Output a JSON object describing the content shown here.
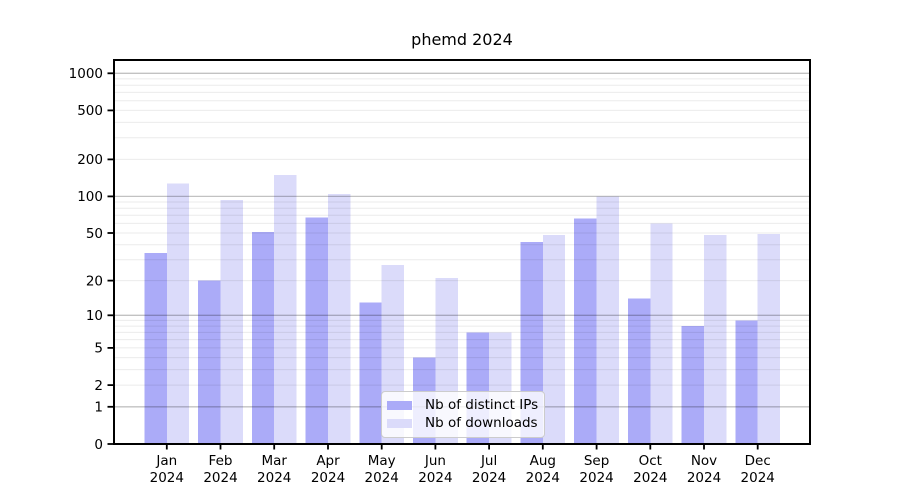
{
  "title": "phemd 2024",
  "chart_data": {
    "type": "bar",
    "title": "phemd 2024",
    "categories": [
      "Jan",
      "Feb",
      "Mar",
      "Apr",
      "May",
      "Jun",
      "Jul",
      "Aug",
      "Sep",
      "Oct",
      "Nov",
      "Dec"
    ],
    "year_label": "2024",
    "series": [
      {
        "name": "Nb of distinct IPs",
        "color": "#ababf8",
        "values": [
          34,
          20,
          51,
          67,
          13,
          4,
          7,
          42,
          66,
          14,
          8,
          9
        ]
      },
      {
        "name": "Nb of downloads",
        "color": "#dbdbfa",
        "values": [
          127,
          93,
          150,
          105,
          27,
          21,
          7,
          48,
          100,
          60,
          48,
          49
        ]
      }
    ],
    "yscale": "log10(1+v)",
    "yticks": [
      0,
      1,
      2,
      5,
      10,
      20,
      50,
      100,
      200,
      500,
      1000
    ],
    "major_gridlines": [
      1,
      10,
      100,
      1000
    ],
    "minor_gridline_steps": [
      2,
      3,
      4,
      5,
      6,
      7,
      8,
      9
    ],
    "ylim_top_value": 1300,
    "grid": true,
    "legend_position": "lower center",
    "legend_entries": [
      "Nb of distinct IPs",
      "Nb of downloads"
    ]
  },
  "colors": {
    "bar_distinct_ips": "#ababf8",
    "bar_downloads": "#dbdbfa",
    "grid_major": "rgba(0,0,0,0.24)",
    "grid_minor": "rgba(0,0,0,0.08)",
    "grid_major_hex": "#c2c2c2",
    "grid_minor_hex": "#ebebeb",
    "axis": "#000000",
    "legend_border": "#cccccc",
    "background": "#ffffff"
  }
}
